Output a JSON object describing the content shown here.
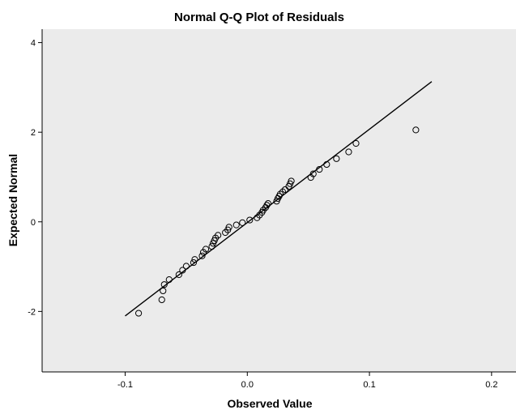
{
  "chart_data": {
    "type": "scatter",
    "title": "Normal Q-Q Plot of Residuals",
    "xlabel": "Observed Value",
    "ylabel": "Expected Normal",
    "xlim": [
      -0.168,
      0.22
    ],
    "ylim": [
      -3.35,
      4.3
    ],
    "x_ticks": [
      -0.1,
      0.0,
      0.1,
      0.2
    ],
    "x_tick_labels": [
      "-0.1",
      "0.0",
      "0.1",
      "0.2"
    ],
    "y_ticks": [
      -2,
      0,
      2,
      4
    ],
    "y_tick_labels": [
      "-2",
      "0",
      "2",
      "4"
    ],
    "grid": false,
    "plot_background": "#ebebeb",
    "marker_color": "#000000",
    "reference_line": {
      "x": [
        -0.1,
        0.151
      ],
      "y": [
        -2.1,
        3.13
      ]
    },
    "points": [
      {
        "x": -0.089,
        "y": -2.04
      },
      {
        "x": -0.07,
        "y": -1.74
      },
      {
        "x": -0.069,
        "y": -1.54
      },
      {
        "x": -0.068,
        "y": -1.4
      },
      {
        "x": -0.064,
        "y": -1.29
      },
      {
        "x": -0.056,
        "y": -1.18
      },
      {
        "x": -0.053,
        "y": -1.08
      },
      {
        "x": -0.05,
        "y": -0.99
      },
      {
        "x": -0.044,
        "y": -0.91
      },
      {
        "x": -0.043,
        "y": -0.84
      },
      {
        "x": -0.037,
        "y": -0.76
      },
      {
        "x": -0.036,
        "y": -0.68
      },
      {
        "x": -0.034,
        "y": -0.61
      },
      {
        "x": -0.029,
        "y": -0.55
      },
      {
        "x": -0.028,
        "y": -0.48
      },
      {
        "x": -0.027,
        "y": -0.42
      },
      {
        "x": -0.026,
        "y": -0.36
      },
      {
        "x": -0.024,
        "y": -0.3
      },
      {
        "x": -0.018,
        "y": -0.24
      },
      {
        "x": -0.016,
        "y": -0.18
      },
      {
        "x": -0.015,
        "y": -0.12
      },
      {
        "x": -0.009,
        "y": -0.07
      },
      {
        "x": -0.004,
        "y": -0.02
      },
      {
        "x": 0.002,
        "y": 0.04
      },
      {
        "x": 0.008,
        "y": 0.09
      },
      {
        "x": 0.01,
        "y": 0.15
      },
      {
        "x": 0.012,
        "y": 0.21
      },
      {
        "x": 0.013,
        "y": 0.26
      },
      {
        "x": 0.015,
        "y": 0.32
      },
      {
        "x": 0.016,
        "y": 0.37
      },
      {
        "x": 0.017,
        "y": 0.41
      },
      {
        "x": 0.024,
        "y": 0.46
      },
      {
        "x": 0.025,
        "y": 0.52
      },
      {
        "x": 0.026,
        "y": 0.57
      },
      {
        "x": 0.027,
        "y": 0.62
      },
      {
        "x": 0.029,
        "y": 0.67
      },
      {
        "x": 0.031,
        "y": 0.72
      },
      {
        "x": 0.034,
        "y": 0.79
      },
      {
        "x": 0.035,
        "y": 0.85
      },
      {
        "x": 0.036,
        "y": 0.91
      },
      {
        "x": 0.052,
        "y": 0.99
      },
      {
        "x": 0.054,
        "y": 1.07
      },
      {
        "x": 0.059,
        "y": 1.17
      },
      {
        "x": 0.065,
        "y": 1.28
      },
      {
        "x": 0.073,
        "y": 1.41
      },
      {
        "x": 0.083,
        "y": 1.56
      },
      {
        "x": 0.089,
        "y": 1.75
      },
      {
        "x": 0.138,
        "y": 2.05
      }
    ]
  }
}
